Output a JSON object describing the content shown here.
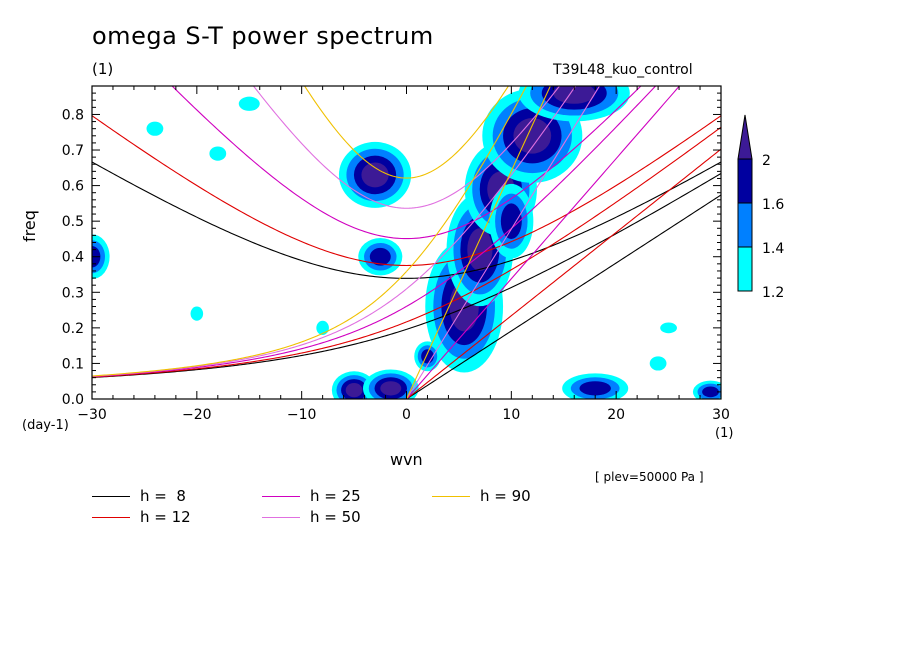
{
  "title": "omega S-T power spectrum",
  "subtitle_left": "(1)",
  "subtitle_right": "T39L48_kuo_control",
  "y_unit_label": "(day-1)",
  "x_unit_label": "(1)",
  "annotation": "[ plev=50000 Pa ]",
  "chart_data": {
    "type": "heatmap",
    "xlabel": "wvn",
    "ylabel": "freq",
    "xlim": [
      -30,
      30
    ],
    "ylim": [
      0,
      0.88
    ],
    "xticks": [
      -30,
      -20,
      -10,
      0,
      10,
      20,
      30
    ],
    "xtick_labels": [
      "−30",
      "−20",
      "−10",
      "0",
      "10",
      "20",
      "30"
    ],
    "yticks": [
      0.0,
      0.1,
      0.2,
      0.3,
      0.4,
      0.5,
      0.6,
      0.7,
      0.8
    ],
    "ytick_labels": [
      "0.0",
      "0.1",
      "0.2",
      "0.3",
      "0.4",
      "0.5",
      "0.6",
      "0.7",
      "0.8"
    ],
    "colorbar": {
      "levels": [
        1.2,
        1.4,
        1.6,
        2
      ],
      "level_labels": [
        "1.2",
        "1.4",
        "1.6",
        "2"
      ],
      "colors": [
        "#00ffff",
        "#0080ff",
        "#0000a0",
        "#3c1a96"
      ]
    },
    "dispersion_curves": [
      {
        "name": "h =  8",
        "h": 8,
        "color": "#000000"
      },
      {
        "name": "h = 12",
        "h": 12,
        "color": "#e00000"
      },
      {
        "name": "h = 25",
        "h": 25,
        "color": "#d000c0"
      },
      {
        "name": "h = 50",
        "h": 50,
        "color": "#e070e0"
      },
      {
        "name": "h = 90",
        "h": 90,
        "color": "#f0c000"
      }
    ],
    "spectral_features": [
      {
        "x": 5.5,
        "y": 0.26,
        "rx": 1.4,
        "ry": 0.07,
        "level": 2
      },
      {
        "x": 7.0,
        "y": 0.42,
        "rx": 1.2,
        "ry": 0.06,
        "level": 2
      },
      {
        "x": 9.0,
        "y": 0.59,
        "rx": 1.3,
        "ry": 0.05,
        "level": 2
      },
      {
        "x": 12.0,
        "y": 0.74,
        "rx": 1.8,
        "ry": 0.05,
        "level": 2
      },
      {
        "x": 16.0,
        "y": 0.86,
        "rx": 2.0,
        "ry": 0.03,
        "level": 2
      },
      {
        "x": -5.0,
        "y": 0.025,
        "rx": 0.8,
        "ry": 0.02,
        "level": 2
      },
      {
        "x": -1.5,
        "y": 0.03,
        "rx": 1.0,
        "ry": 0.02,
        "level": 2
      },
      {
        "x": -3.0,
        "y": 0.63,
        "rx": 1.3,
        "ry": 0.035,
        "level": 2
      },
      {
        "x": -2.5,
        "y": 0.4,
        "rx": 1.0,
        "ry": 0.025,
        "level": 1.6
      },
      {
        "x": 2.0,
        "y": 0.12,
        "rx": 0.6,
        "ry": 0.02,
        "level": 1.6
      },
      {
        "x": 18.0,
        "y": 0.03,
        "rx": 1.5,
        "ry": 0.02,
        "level": 1.6
      },
      {
        "x": 29.0,
        "y": 0.02,
        "rx": 0.8,
        "ry": 0.015,
        "level": 1.6
      },
      {
        "x": 10.0,
        "y": 0.5,
        "rx": 1.0,
        "ry": 0.05,
        "level": 1.6
      },
      {
        "x": -24.0,
        "y": 0.76,
        "rx": 0.8,
        "ry": 0.02,
        "level": 1.2
      },
      {
        "x": -18.0,
        "y": 0.69,
        "rx": 0.8,
        "ry": 0.02,
        "level": 1.2
      },
      {
        "x": -30.0,
        "y": 0.4,
        "rx": 0.8,
        "ry": 0.03,
        "level": 1.6
      },
      {
        "x": -15.0,
        "y": 0.83,
        "rx": 1.0,
        "ry": 0.02,
        "level": 1.2
      },
      {
        "x": -20.0,
        "y": 0.24,
        "rx": 0.6,
        "ry": 0.02,
        "level": 1.2
      },
      {
        "x": -8.0,
        "y": 0.2,
        "rx": 0.6,
        "ry": 0.02,
        "level": 1.2
      },
      {
        "x": 25.0,
        "y": 0.2,
        "rx": 0.8,
        "ry": 0.015,
        "level": 1.2
      },
      {
        "x": 24.0,
        "y": 0.1,
        "rx": 0.8,
        "ry": 0.02,
        "level": 1.2
      }
    ]
  },
  "legend": {
    "items": [
      {
        "label": "h =  8",
        "color": "#000000"
      },
      {
        "label": "h = 12",
        "color": "#e00000"
      },
      {
        "label": "h = 25",
        "color": "#d000c0"
      },
      {
        "label": "h = 50",
        "color": "#e070e0"
      },
      {
        "label": "h = 90",
        "color": "#f0c000"
      }
    ]
  }
}
